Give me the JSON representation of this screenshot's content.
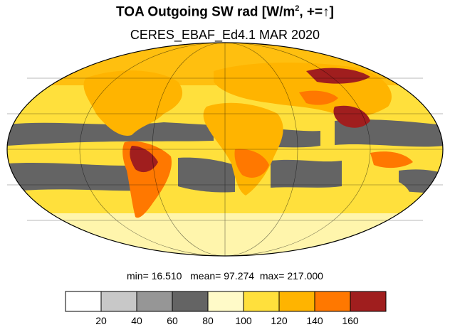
{
  "title": {
    "main": "TOA Outgoing SW rad [W/m",
    "superscript": "2",
    "rest": ", +=↑]"
  },
  "subtitle": "CERES_EBAF_Ed4.1 MAR 2020",
  "stats": {
    "min_label": "min=",
    "min": "16.510",
    "mean_label": "mean=",
    "mean": "97.274",
    "max_label": "max=",
    "max": "217.000"
  },
  "colorbar": {
    "colors": [
      "#ffffff",
      "#c8c8c8",
      "#969696",
      "#646464",
      "#fffac8",
      "#ffe03c",
      "#ffb400",
      "#ff7800",
      "#a01e1e"
    ],
    "tick_labels": [
      "20",
      "40",
      "60",
      "80",
      "100",
      "120",
      "140",
      "160"
    ]
  },
  "map": {
    "projection": "mollweide",
    "ocean_fill": "#ffe03c",
    "graticule": true
  }
}
